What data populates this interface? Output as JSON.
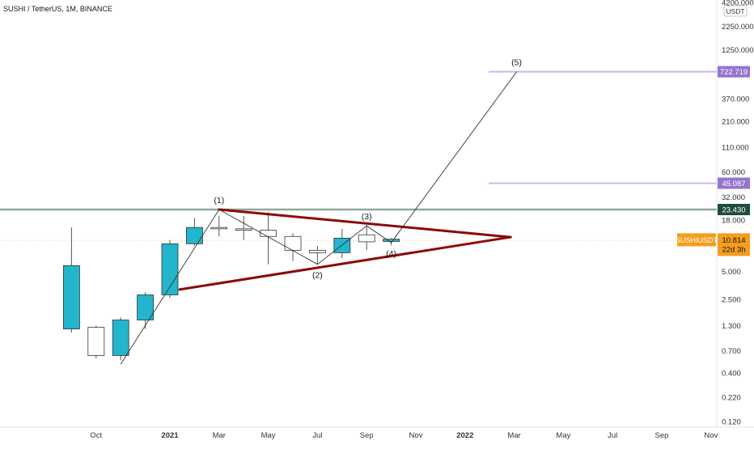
{
  "header": {
    "symbol_line": "SUSHI / TetherUS, 1M, BINANCE"
  },
  "colors": {
    "bull": "#22b5cb",
    "bear": "#ffffff",
    "wick": "#555555",
    "outline": "#333333",
    "triangle": "#8b0a0a",
    "wave": "#333333",
    "target_line": "#c9b8ee",
    "target_label": "#9575cd",
    "support_line": "#8ea8a0",
    "support_label": "#1e4d3c",
    "price_label": "#f59d1c",
    "axis_text": "#333333"
  },
  "chart_data": {
    "type": "candlestick",
    "scale": "log",
    "x": [
      "Oct",
      "2021",
      "Mar",
      "May",
      "Jul",
      "Sep",
      "Nov",
      "2022",
      "Mar",
      "May",
      "Jul",
      "Sep",
      "Nov"
    ],
    "y_ticks": [
      "4200.000",
      "2250.000",
      "1250.000",
      "370.000",
      "210.000",
      "110.000",
      "60.000",
      "32.000",
      "18.000",
      "5.000",
      "2.500",
      "1.300",
      "0.700",
      "0.400",
      "0.220",
      "0.120"
    ],
    "y_unit": "USDT",
    "candles": [
      {
        "month": "2020-09",
        "open": 1.2,
        "high": 15.0,
        "low": 1.1,
        "close": 5.8
      },
      {
        "month": "2020-10",
        "open": 1.25,
        "high": 1.3,
        "low": 0.58,
        "close": 0.62
      },
      {
        "month": "2020-11",
        "open": 0.62,
        "high": 1.6,
        "low": 0.55,
        "close": 1.5
      },
      {
        "month": "2020-12",
        "open": 1.5,
        "high": 3.0,
        "low": 1.2,
        "close": 2.8
      },
      {
        "month": "2021-01",
        "open": 2.8,
        "high": 11.0,
        "low": 2.6,
        "close": 10.0
      },
      {
        "month": "2021-02",
        "open": 10.0,
        "high": 19.0,
        "low": 9.5,
        "close": 15.0
      },
      {
        "month": "2021-03",
        "open": 15.0,
        "high": 20.0,
        "low": 12.0,
        "close": 14.5
      },
      {
        "month": "2021-04",
        "open": 14.5,
        "high": 20.0,
        "low": 11.0,
        "close": 14.0
      },
      {
        "month": "2021-05",
        "open": 14.0,
        "high": 22.0,
        "low": 6.0,
        "close": 12.0
      },
      {
        "month": "2021-06",
        "open": 12.0,
        "high": 13.0,
        "low": 6.5,
        "close": 8.5
      },
      {
        "month": "2021-07",
        "open": 8.5,
        "high": 9.5,
        "low": 6.0,
        "close": 8.0
      },
      {
        "month": "2021-08",
        "open": 8.0,
        "high": 14.5,
        "low": 7.0,
        "close": 11.5
      },
      {
        "month": "2021-09",
        "open": 12.5,
        "high": 16.0,
        "low": 8.5,
        "close": 10.5
      },
      {
        "month": "2021-10",
        "open": 10.6,
        "high": 11.5,
        "low": 9.6,
        "close": 11.2
      }
    ],
    "waves": [
      {
        "label": "(1)",
        "date": "2021-03",
        "price": 23.43
      },
      {
        "label": "(2)",
        "date": "2021-07",
        "price": 6.0
      },
      {
        "label": "(3)",
        "date": "2021-09",
        "price": 15.6
      },
      {
        "label": "(4)",
        "date": "2021-10",
        "price": 10.3
      },
      {
        "label": "(5)",
        "date": "2022-03",
        "price": 722.719
      }
    ],
    "wave_start": {
      "date": "2020-11",
      "price": 0.5
    },
    "triangle": {
      "upper": [
        {
          "date": "2021-03",
          "price": 23.43
        },
        {
          "date": "2022-02",
          "price": 11.8
        }
      ],
      "lower": [
        {
          "date": "2021-01",
          "price": 3.2
        },
        {
          "date": "2022-02",
          "price": 11.8
        }
      ]
    },
    "levels": [
      {
        "price": 722.719,
        "label": "722.719",
        "kind": "target"
      },
      {
        "price": 45.087,
        "label": "45.087",
        "kind": "target"
      },
      {
        "price": 23.43,
        "label": "23.430",
        "kind": "support"
      }
    ],
    "current_price": {
      "symbol": "SUSHIUSDT",
      "price": 10.814,
      "value_label": "10.814",
      "countdown": "22d 3h"
    }
  }
}
